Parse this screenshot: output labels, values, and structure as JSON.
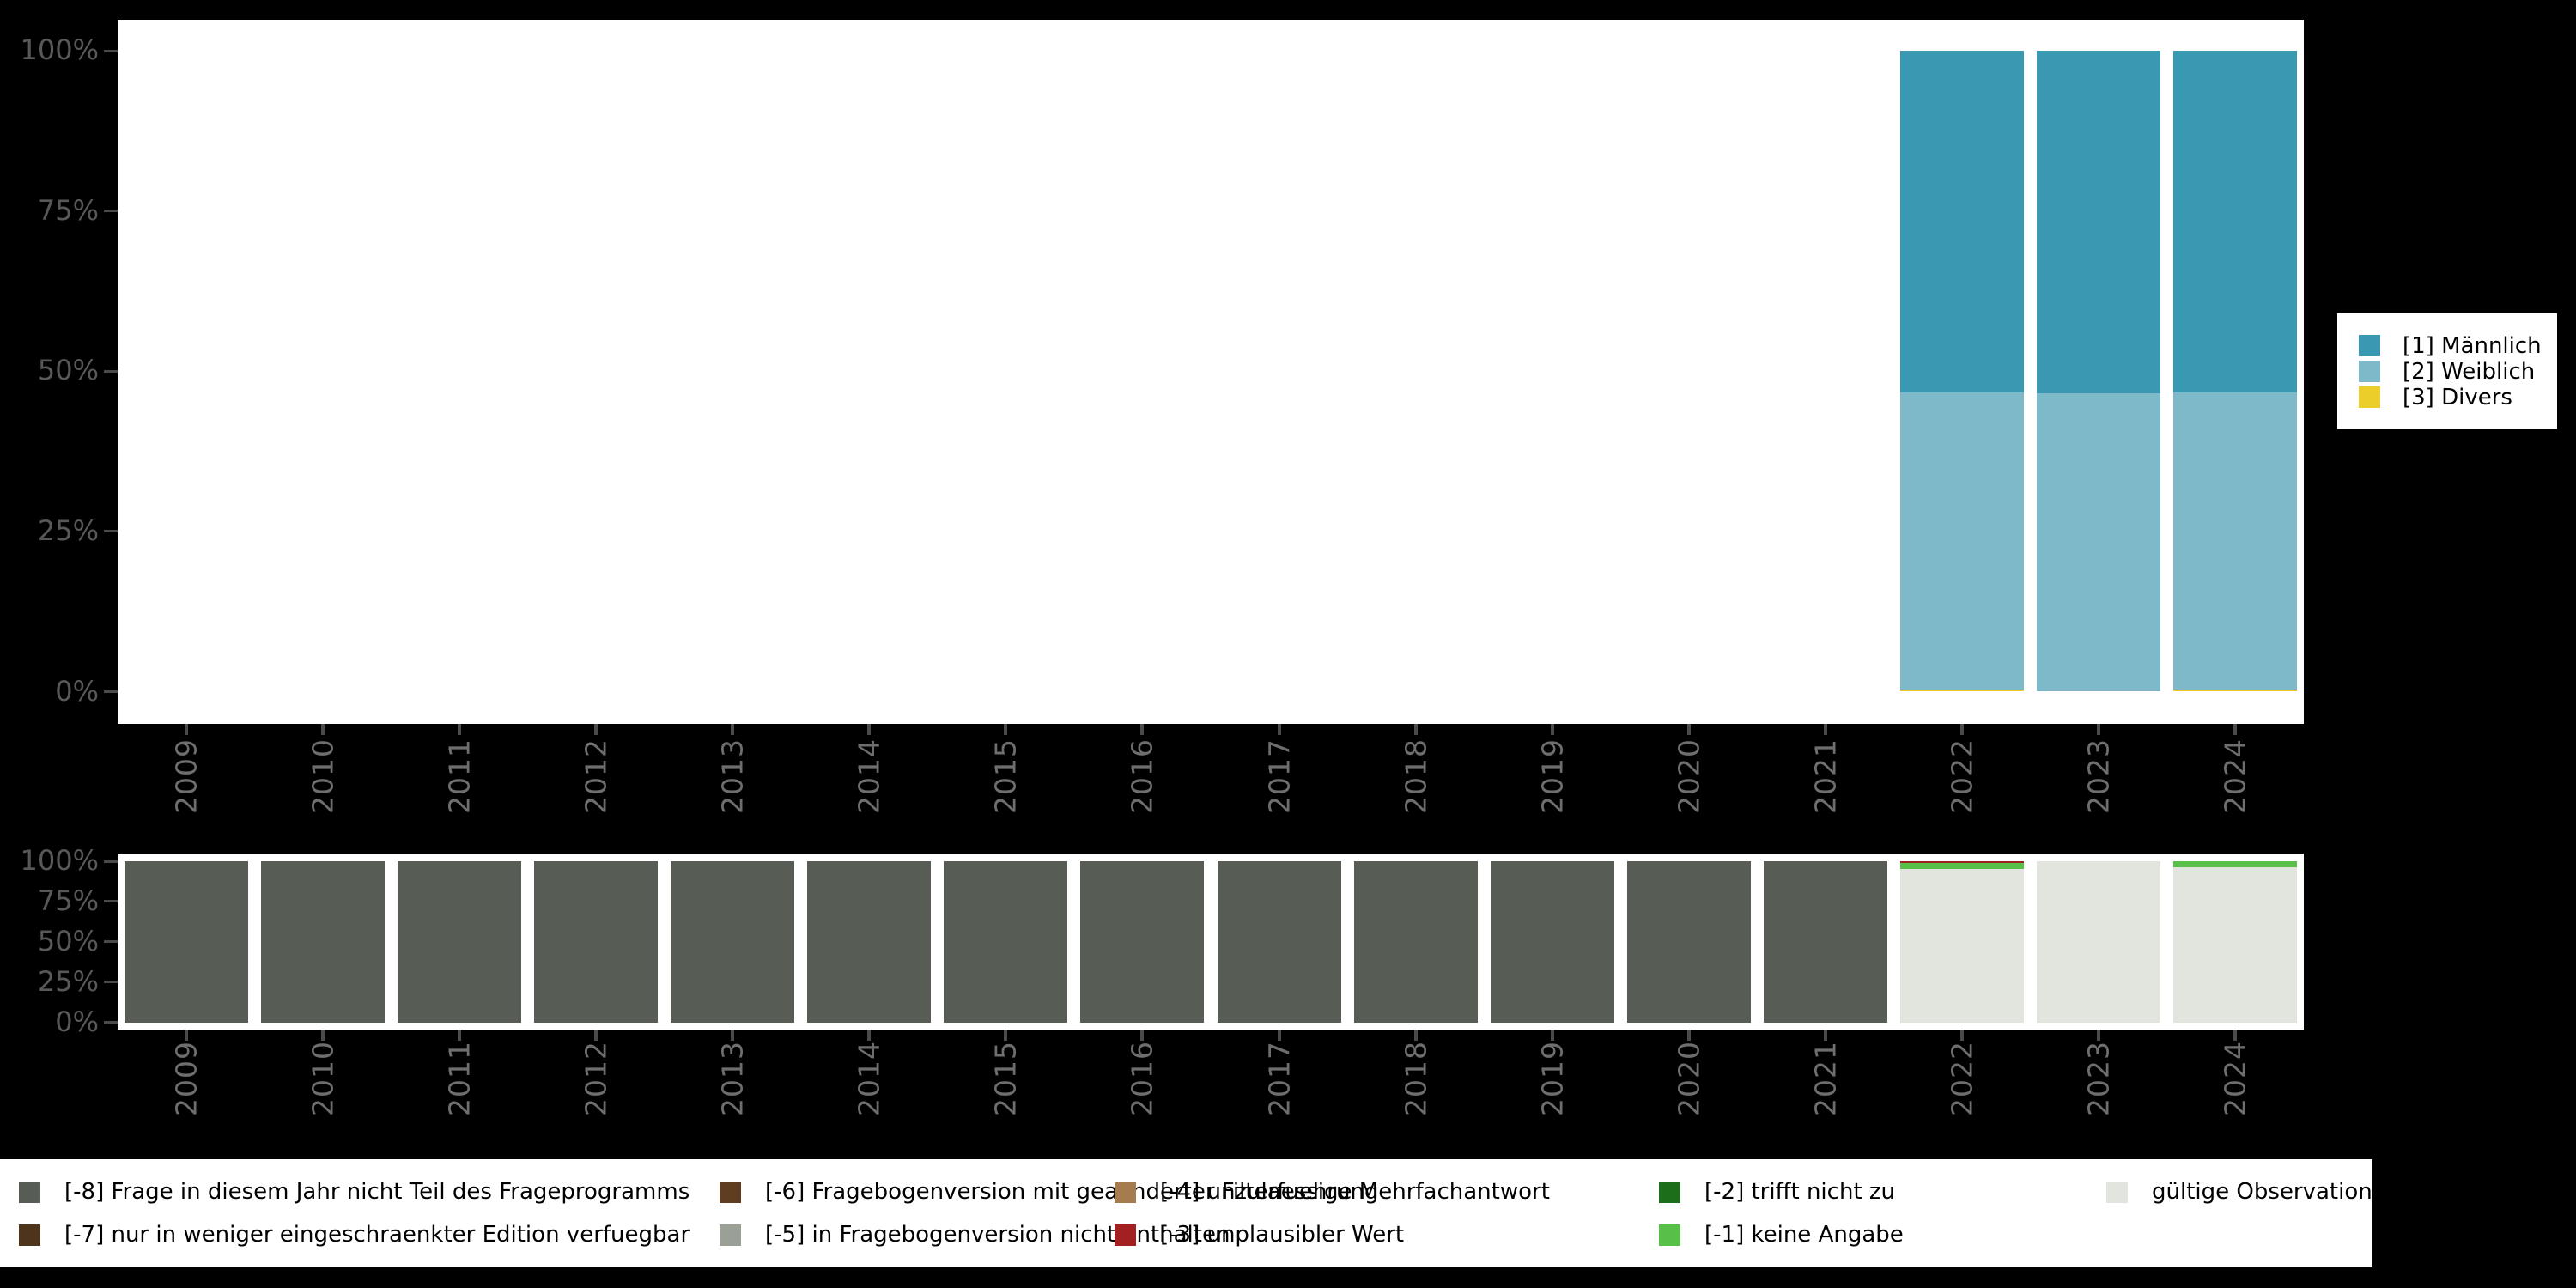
{
  "figure": {
    "background": "#000000",
    "plot_background": "#ffffff",
    "axis_text_color": "#585858",
    "year_text_color": "#6e6e6e",
    "tick_color": "#4a4a4a"
  },
  "chart_data": [
    {
      "name": "variable-distribution-by-year",
      "type": "bar",
      "stacking": "percent",
      "grid": false,
      "legend_position": "right",
      "ylim": [
        0,
        100
      ],
      "y_tick_labels_top_to_bottom": [
        "100%",
        "75%",
        "50%",
        "25%",
        "0%"
      ],
      "x": [
        "2009",
        "2010",
        "2011",
        "2012",
        "2013",
        "2014",
        "2015",
        "2016",
        "2017",
        "2018",
        "2019",
        "2020",
        "2021",
        "2022",
        "2023",
        "2024"
      ],
      "series": [
        {
          "name": "[1] Männlich",
          "color": "#3a99b2",
          "values": [
            0,
            0,
            0,
            0,
            0,
            0,
            0,
            0,
            0,
            0,
            0,
            0,
            0,
            53.3,
            53.5,
            53.3
          ]
        },
        {
          "name": "[2] Weiblich",
          "color": "#7db9c9",
          "values": [
            0,
            0,
            0,
            0,
            0,
            0,
            0,
            0,
            0,
            0,
            0,
            0,
            0,
            46.4,
            46.5,
            46.4
          ]
        },
        {
          "name": "[3] Divers",
          "color": "#ecce2a",
          "values": [
            0,
            0,
            0,
            0,
            0,
            0,
            0,
            0,
            0,
            0,
            0,
            0,
            0,
            0.3,
            0,
            0.3
          ]
        }
      ]
    },
    {
      "name": "observation-status-by-year",
      "type": "bar",
      "stacking": "percent",
      "grid": false,
      "legend_position": "bottom",
      "ylim": [
        0,
        100
      ],
      "y_tick_labels_top_to_bottom": [
        "100%",
        "75%",
        "50%",
        "25%",
        "0%"
      ],
      "x": [
        "2009",
        "2010",
        "2011",
        "2012",
        "2013",
        "2014",
        "2015",
        "2016",
        "2017",
        "2018",
        "2019",
        "2020",
        "2021",
        "2022",
        "2023",
        "2024"
      ],
      "series": [
        {
          "name": "[-8] Frage in diesem Jahr nicht Teil des Frageprogramms",
          "color": "#575c55",
          "values": [
            100,
            100,
            100,
            100,
            100,
            100,
            100,
            100,
            100,
            100,
            100,
            100,
            100,
            0,
            0,
            0
          ]
        },
        {
          "name": "[-7] nur in weniger eingeschraenkter Edition verfuegbar",
          "color": "#4f341c",
          "values": [
            0,
            0,
            0,
            0,
            0,
            0,
            0,
            0,
            0,
            0,
            0,
            0,
            0,
            0,
            0,
            0
          ]
        },
        {
          "name": "[-6] Fragebogenversion mit geaenderter Filterfuehrung",
          "color": "#5e3d20",
          "values": [
            0,
            0,
            0,
            0,
            0,
            0,
            0,
            0,
            0,
            0,
            0,
            0,
            0,
            0,
            0,
            0
          ]
        },
        {
          "name": "[-5] in Fragebogenversion nicht enthalten",
          "color": "#9ba096",
          "values": [
            0,
            0,
            0,
            0,
            0,
            0,
            0,
            0,
            0,
            0,
            0,
            0,
            0,
            0,
            0,
            0
          ]
        },
        {
          "name": "[-4] unzulaessige Mehrfachantwort",
          "color": "#a57c4e",
          "values": [
            0,
            0,
            0,
            0,
            0,
            0,
            0,
            0,
            0,
            0,
            0,
            0,
            0,
            0,
            0,
            0
          ]
        },
        {
          "name": "[-3] unplausibler Wert",
          "color": "#a32020",
          "values": [
            0,
            0,
            0,
            0,
            0,
            0,
            0,
            0,
            0,
            0,
            0,
            0,
            0,
            1.2,
            0,
            0
          ]
        },
        {
          "name": "[-2] trifft nicht zu",
          "color": "#1d6e1b",
          "values": [
            0,
            0,
            0,
            0,
            0,
            0,
            0,
            0,
            0,
            0,
            0,
            0,
            0,
            0,
            0,
            0
          ]
        },
        {
          "name": "[-1] keine Angabe",
          "color": "#58bf49",
          "values": [
            0,
            0,
            0,
            0,
            0,
            0,
            0,
            0,
            0,
            0,
            0,
            0,
            0,
            3.7,
            0,
            3.7
          ]
        },
        {
          "name": "gültige Observationen",
          "color": "#e1e5de",
          "values": [
            0,
            0,
            0,
            0,
            0,
            0,
            0,
            0,
            0,
            0,
            0,
            0,
            0,
            95.1,
            100,
            96.3
          ]
        }
      ]
    }
  ]
}
